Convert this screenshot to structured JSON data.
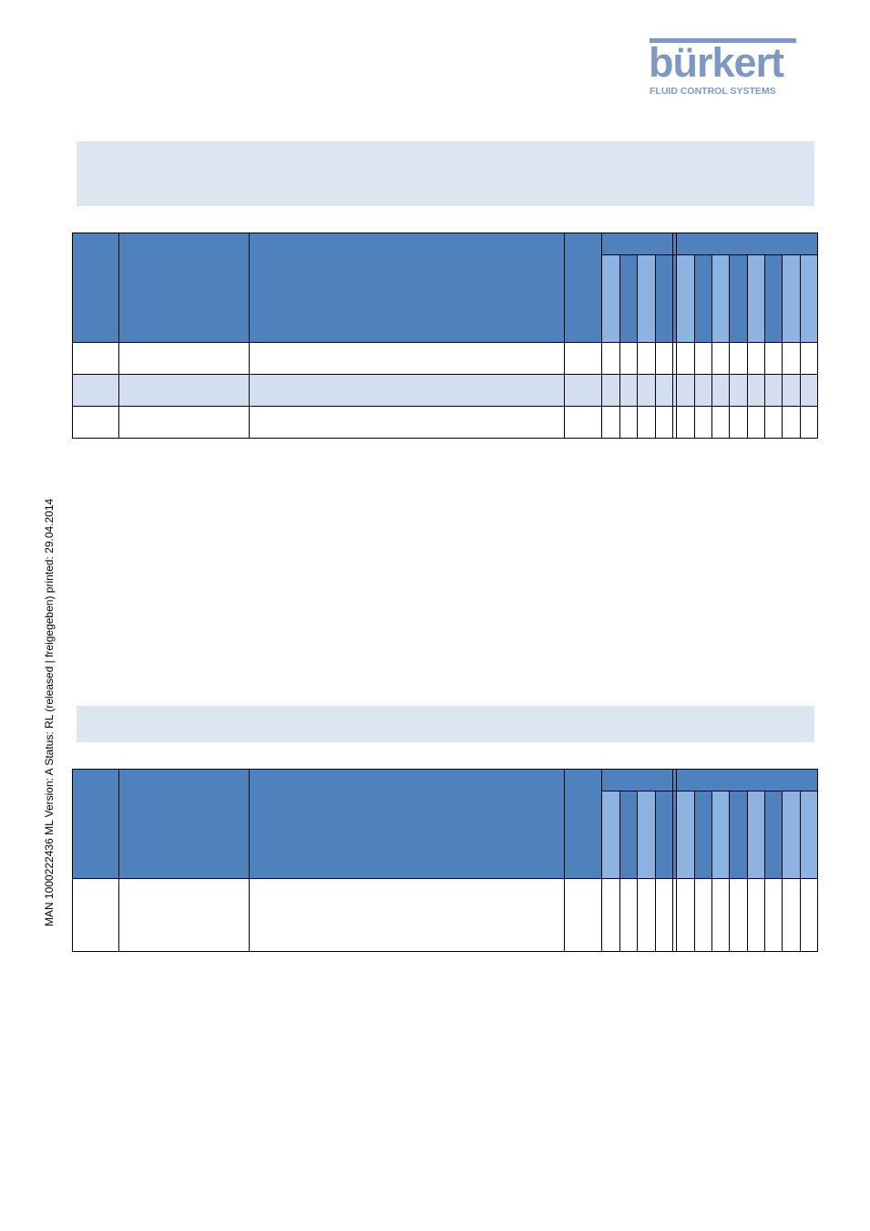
{
  "header": {
    "logo_text": "bürkert",
    "logo_subtitle": "FLUID CONTROL SYSTEMS",
    "logo_color": "#7d98c2"
  },
  "sidebar_text": "MAN  1000222436  ML  Version: A  Status: RL (released | freigegeben)  printed: 29.04.2014",
  "colors": {
    "header_fill": "#4f81bd",
    "subheader_fill": "#8db3e2",
    "band_fill": "#dce6f1",
    "alt_row_fill": "#d3dfee"
  },
  "tables": [
    {
      "rows": 3,
      "alternating_rows": [
        false,
        true,
        false
      ],
      "group_a_subcolumns": 4,
      "group_b_subcolumns": 8
    },
    {
      "rows": 1,
      "alternating_rows": [
        false
      ],
      "group_a_subcolumns": 4,
      "group_b_subcolumns": 8
    }
  ]
}
